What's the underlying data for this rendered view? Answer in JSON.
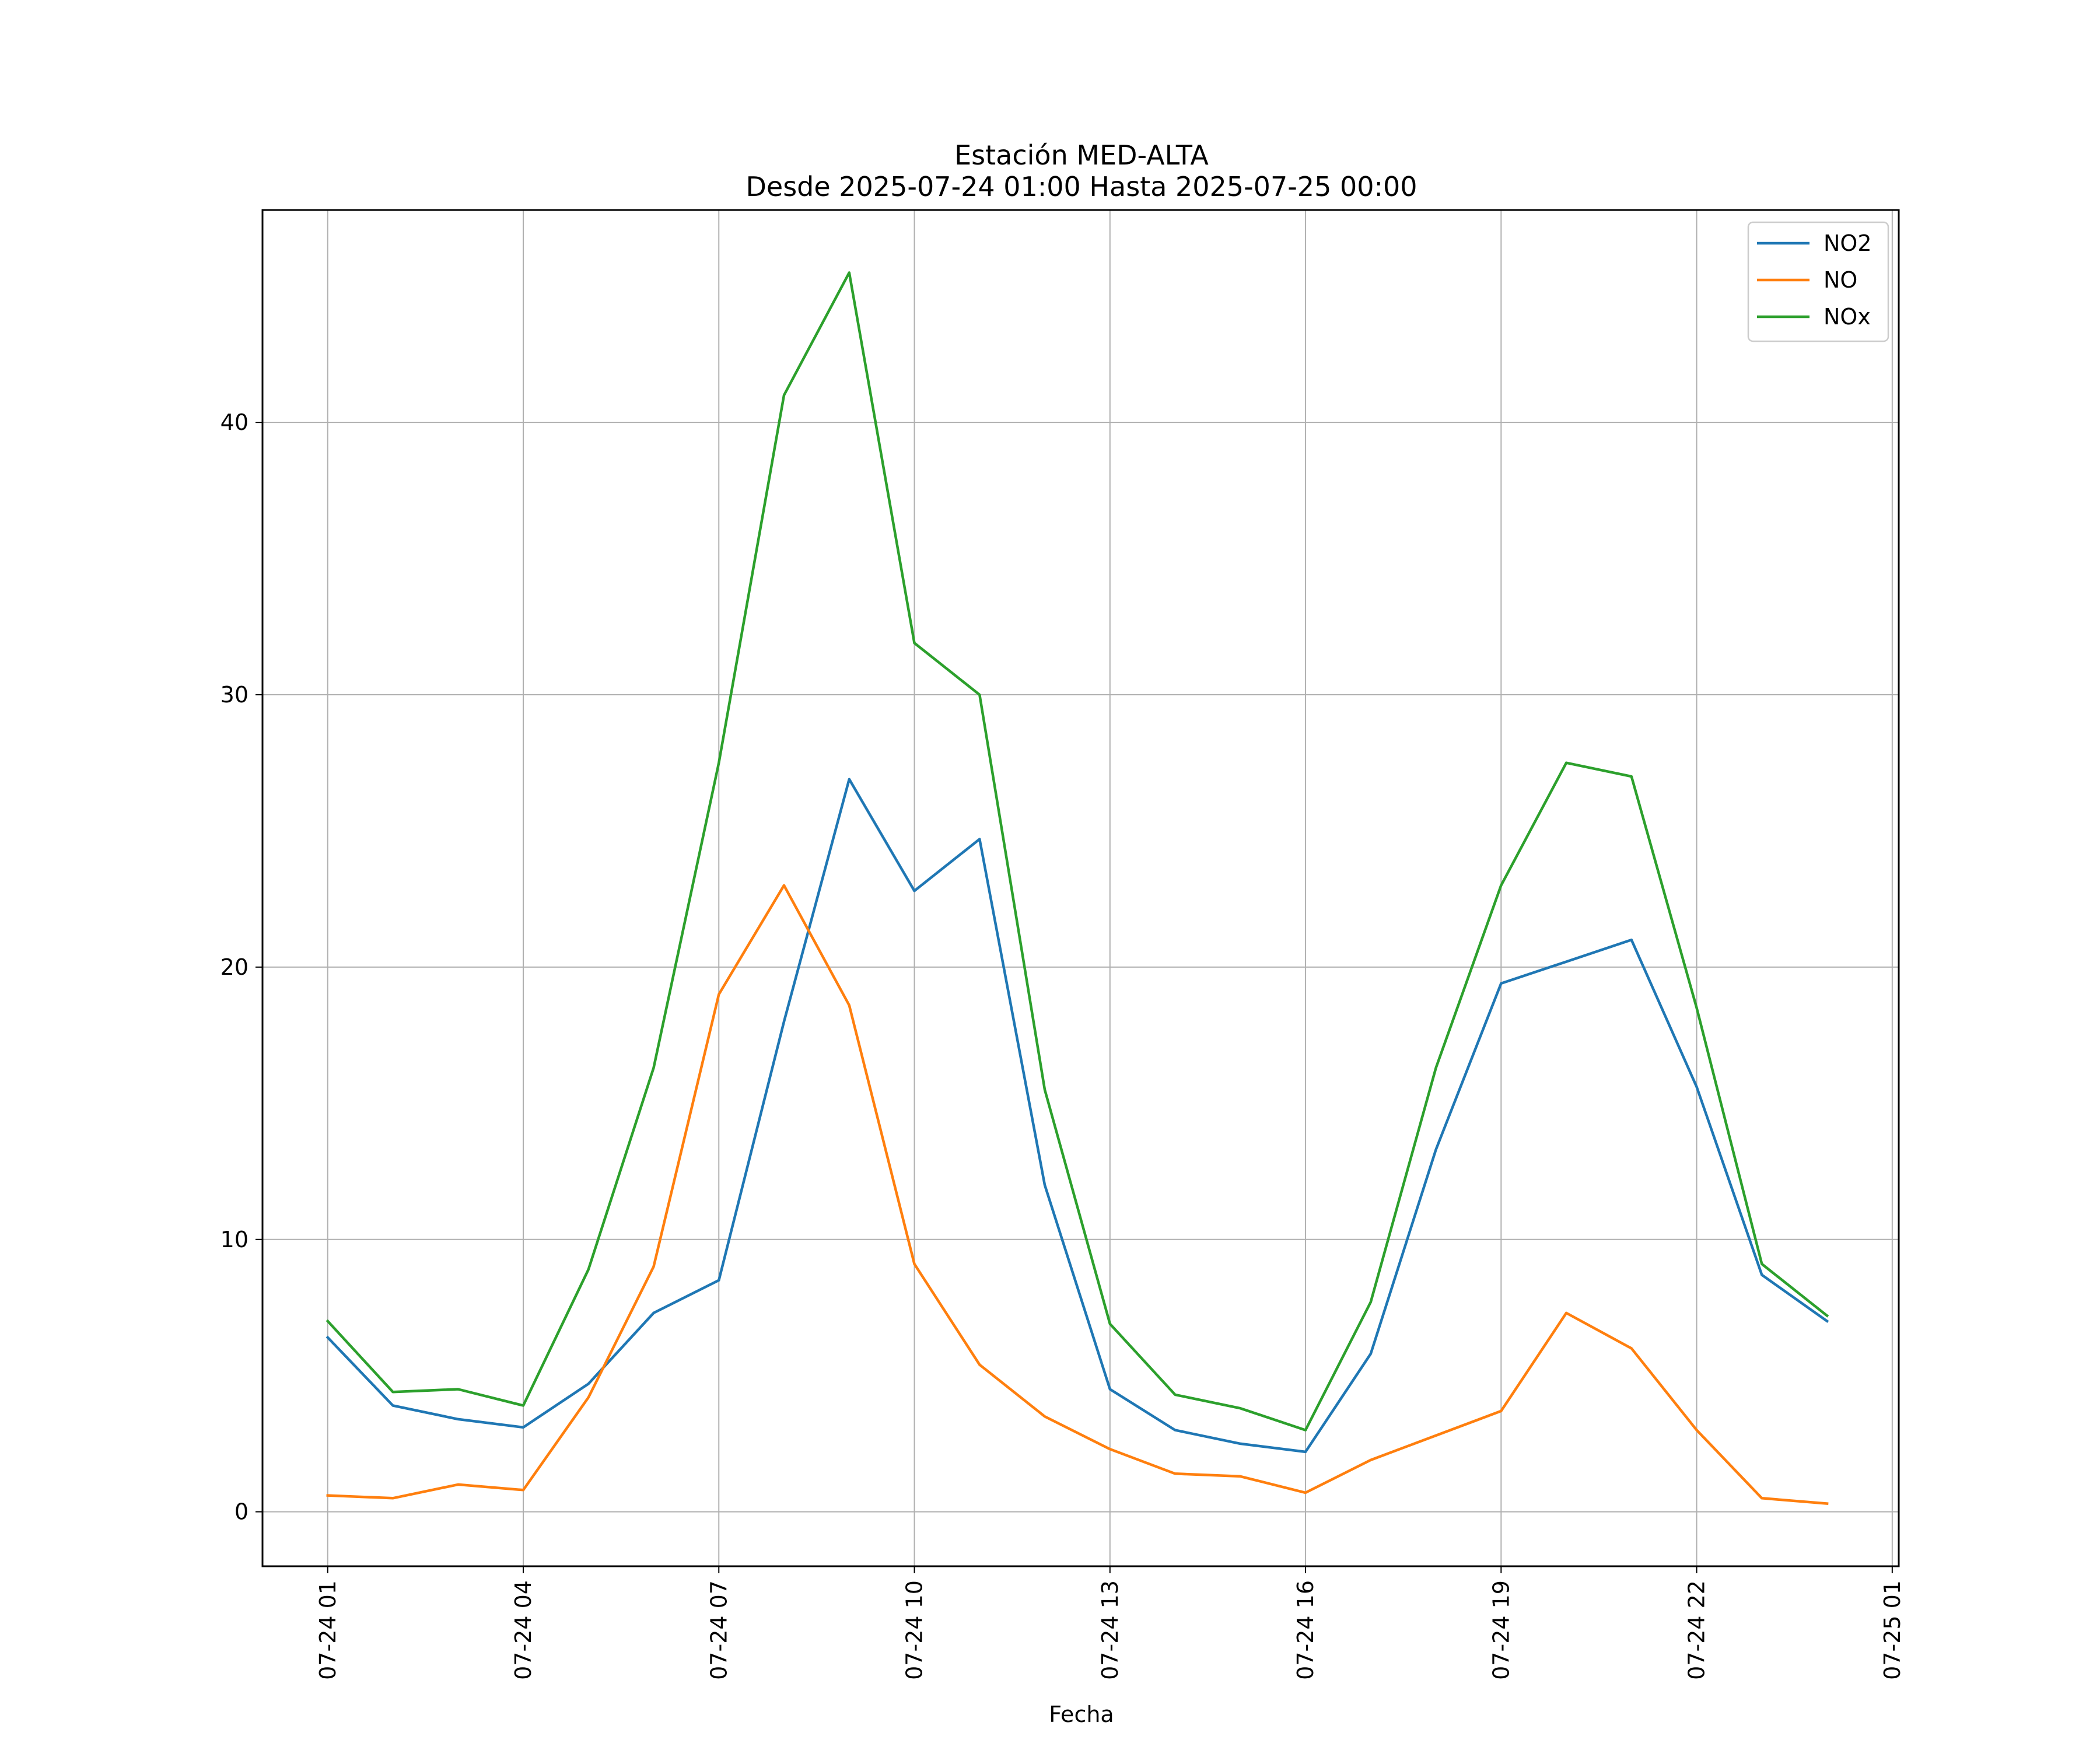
{
  "chart_data": {
    "type": "line",
    "title": "Estación MED-ALTA",
    "subtitle": "Desde 2025-07-24 01:00 Hasta 2025-07-25 00:00",
    "xlabel": "Fecha",
    "ylabel": "",
    "x": [
      "2025-07-24 01:00",
      "2025-07-24 02:00",
      "2025-07-24 03:00",
      "2025-07-24 04:00",
      "2025-07-24 05:00",
      "2025-07-24 06:00",
      "2025-07-24 07:00",
      "2025-07-24 08:00",
      "2025-07-24 09:00",
      "2025-07-24 10:00",
      "2025-07-24 11:00",
      "2025-07-24 12:00",
      "2025-07-24 13:00",
      "2025-07-24 14:00",
      "2025-07-24 15:00",
      "2025-07-24 16:00",
      "2025-07-24 17:00",
      "2025-07-24 18:00",
      "2025-07-24 19:00",
      "2025-07-24 20:00",
      "2025-07-24 21:00",
      "2025-07-24 22:00",
      "2025-07-24 23:00",
      "2025-07-25 00:00"
    ],
    "xlim": [
      "2025-07-24 00:00",
      "2025-07-25 01:06"
    ],
    "ylim": [
      -2,
      47.8
    ],
    "yticks": [
      0,
      10,
      20,
      30,
      40
    ],
    "xticks": [
      "07-24 01",
      "07-24 04",
      "07-24 07",
      "07-24 10",
      "07-24 13",
      "07-24 16",
      "07-24 19",
      "07-24 22",
      "07-25 01"
    ],
    "xtick_values": [
      "2025-07-24 01:00",
      "2025-07-24 04:00",
      "2025-07-24 07:00",
      "2025-07-24 10:00",
      "2025-07-24 13:00",
      "2025-07-24 16:00",
      "2025-07-24 19:00",
      "2025-07-24 22:00",
      "2025-07-25 01:00"
    ],
    "grid": true,
    "legend": "top-right",
    "series": [
      {
        "name": "NO2",
        "color": "#1f77b4",
        "values": [
          6.4,
          3.9,
          3.4,
          3.1,
          4.7,
          7.3,
          8.5,
          18.0,
          26.9,
          22.8,
          24.7,
          12.0,
          4.5,
          3.0,
          2.5,
          2.2,
          5.8,
          13.3,
          19.4,
          20.2,
          21.0,
          15.6,
          8.7,
          7.0
        ]
      },
      {
        "name": "NO",
        "color": "#ff7f0e",
        "values": [
          0.6,
          0.5,
          1.0,
          0.8,
          4.2,
          9.0,
          19.0,
          23.0,
          18.6,
          9.1,
          5.4,
          3.5,
          2.3,
          1.4,
          1.3,
          0.7,
          1.9,
          2.8,
          3.7,
          7.3,
          6.0,
          3.0,
          0.5,
          0.3
        ]
      },
      {
        "name": "NOx",
        "color": "#2ca02c",
        "values": [
          7.0,
          4.4,
          4.5,
          3.9,
          8.9,
          16.3,
          27.5,
          41.0,
          45.5,
          31.9,
          30.0,
          15.5,
          6.9,
          4.3,
          3.8,
          3.0,
          7.7,
          16.3,
          23.0,
          27.5,
          27.0,
          18.5,
          9.1,
          7.2
        ]
      }
    ]
  }
}
